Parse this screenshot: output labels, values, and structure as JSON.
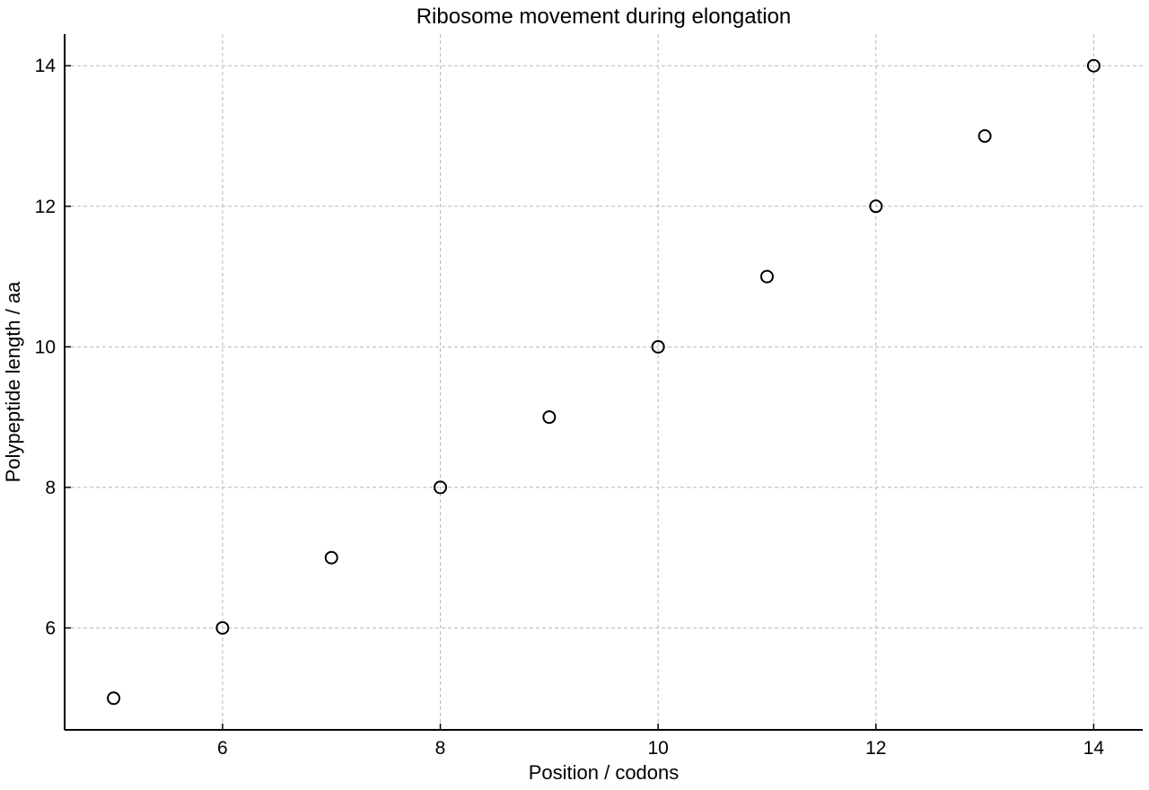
{
  "chart_data": {
    "type": "scatter",
    "title": "Ribosome movement during elongation",
    "xlabel": "Position / codons",
    "ylabel": "Polypeptide length / aa",
    "xlim": [
      4.55,
      14.45
    ],
    "ylim": [
      4.55,
      14.45
    ],
    "x_ticks": [
      6,
      8,
      10,
      12,
      14
    ],
    "y_ticks": [
      6,
      8,
      10,
      12,
      14
    ],
    "grid": true,
    "marker": "open-circle",
    "colors": {
      "marker": "#000000",
      "grid": "#b8b8b8",
      "axis": "#000000"
    },
    "series": [
      {
        "x": [
          5,
          6,
          7,
          8,
          9,
          10,
          11,
          12,
          13,
          14
        ],
        "y": [
          5,
          6,
          7,
          8,
          9,
          10,
          11,
          12,
          13,
          14
        ]
      }
    ]
  }
}
